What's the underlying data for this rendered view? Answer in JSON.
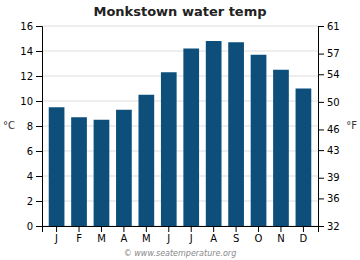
{
  "chart_data": {
    "type": "bar",
    "title": "Monkstown water temp",
    "categories": [
      "J",
      "F",
      "M",
      "A",
      "M",
      "J",
      "J",
      "A",
      "S",
      "O",
      "N",
      "D"
    ],
    "values": [
      9.5,
      8.7,
      8.5,
      9.3,
      10.5,
      12.3,
      14.2,
      14.8,
      14.7,
      13.7,
      12.5,
      11.0
    ],
    "color": "#0d4f7a",
    "ylabel": "°C",
    "y2label": "°F",
    "ylim": [
      0,
      16
    ],
    "yticks": [
      0,
      2,
      4,
      6,
      8,
      10,
      12,
      14,
      16
    ],
    "y2lim": [
      32,
      61
    ],
    "y2ticks": [
      32,
      36,
      39,
      43,
      46,
      50,
      54,
      57,
      61
    ],
    "grid": true,
    "annotations": [
      "© www.seatemperature.org"
    ]
  }
}
